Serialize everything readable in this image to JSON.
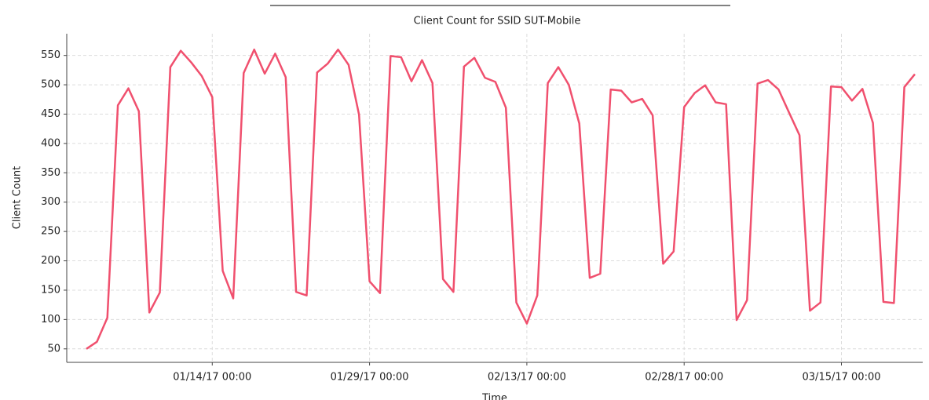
{
  "chart_data": {
    "type": "line",
    "title": "Client Count for SSID SUT-Mobile",
    "x_label": "Time",
    "y_label": "Client Count",
    "x": [
      "01/02/17 00:00",
      "01/03/17 00:00",
      "01/04/17 00:00",
      "01/05/17 00:00",
      "01/06/17 00:00",
      "01/07/17 00:00",
      "01/08/17 00:00",
      "01/09/17 00:00",
      "01/10/17 00:00",
      "01/11/17 00:00",
      "01/12/17 00:00",
      "01/13/17 00:00",
      "01/14/17 00:00",
      "01/15/17 00:00",
      "01/16/17 00:00",
      "01/17/17 00:00",
      "01/18/17 00:00",
      "01/19/17 00:00",
      "01/20/17 00:00",
      "01/21/17 00:00",
      "01/22/17 00:00",
      "01/23/17 00:00",
      "01/24/17 00:00",
      "01/25/17 00:00",
      "01/26/17 00:00",
      "01/27/17 00:00",
      "01/28/17 00:00",
      "01/29/17 00:00",
      "01/30/17 00:00",
      "01/31/17 00:00",
      "02/01/17 00:00",
      "02/02/17 00:00",
      "02/03/17 00:00",
      "02/04/17 00:00",
      "02/05/17 00:00",
      "02/06/17 00:00",
      "02/07/17 00:00",
      "02/08/17 00:00",
      "02/09/17 00:00",
      "02/10/17 00:00",
      "02/11/17 00:00",
      "02/12/17 00:00",
      "02/13/17 00:00",
      "02/14/17 00:00",
      "02/15/17 00:00",
      "02/16/17 00:00",
      "02/17/17 00:00",
      "02/18/17 00:00",
      "02/19/17 00:00",
      "02/20/17 00:00",
      "02/21/17 00:00",
      "02/22/17 00:00",
      "02/23/17 00:00",
      "02/24/17 00:00",
      "02/25/17 00:00",
      "02/26/17 00:00",
      "02/27/17 00:00",
      "02/28/17 00:00",
      "03/01/17 00:00",
      "03/02/17 00:00",
      "03/03/17 00:00",
      "03/04/17 00:00",
      "03/05/17 00:00",
      "03/06/17 00:00",
      "03/07/17 00:00",
      "03/08/17 00:00",
      "03/09/17 00:00",
      "03/10/17 00:00",
      "03/11/17 00:00",
      "03/12/17 00:00",
      "03/13/17 00:00",
      "03/14/17 00:00",
      "03/15/17 00:00",
      "03/16/17 00:00",
      "03/17/17 00:00",
      "03/18/17 00:00",
      "03/19/17 00:00",
      "03/20/17 00:00",
      "03/21/17 00:00",
      "03/22/17 00:00"
    ],
    "values": [
      50,
      62,
      103,
      465,
      494,
      455,
      112,
      146,
      530,
      558,
      538,
      515,
      479,
      183,
      136,
      520,
      560,
      519,
      553,
      513,
      147,
      141,
      521,
      536,
      560,
      534,
      449,
      165,
      145,
      549,
      547,
      506,
      542,
      503,
      169,
      147,
      531,
      546,
      512,
      505,
      461,
      129,
      93,
      141,
      503,
      530,
      500,
      434,
      171,
      178,
      492,
      490,
      470,
      476,
      448,
      195,
      216,
      462,
      486,
      499,
      470,
      467,
      99,
      133,
      502,
      508,
      492,
      453,
      414,
      115,
      129,
      497,
      496,
      473,
      493,
      435,
      130,
      128,
      496,
      518
    ],
    "color": "#f0506e",
    "xlim": [
      "12/31/16 03:00",
      "03/22/17 18:00"
    ],
    "xticks": [
      "01/14/17 00:00",
      "01/29/17 00:00",
      "02/13/17 00:00",
      "02/28/17 00:00",
      "03/15/17 00:00"
    ],
    "ylim": [
      27,
      587
    ],
    "yticks": [
      50,
      100,
      150,
      200,
      250,
      300,
      350,
      400,
      450,
      500,
      550
    ],
    "grid": true
  }
}
